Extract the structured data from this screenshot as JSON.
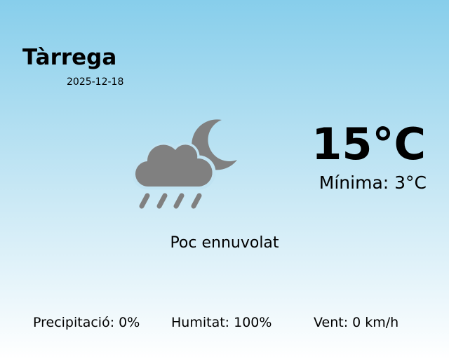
{
  "location": {
    "city": "Tàrrega",
    "date": "2025-12-18"
  },
  "current": {
    "temperature": "15°C",
    "min_temperature": "Mínima: 3°C",
    "condition": "Poc ennuvolat",
    "icon": "cloud-rain-moon-icon",
    "icon_color": "#808080"
  },
  "stats": {
    "precipitation": "Precipitació: 0%",
    "humidity": "Humitat: 100%",
    "wind": "Vent: 0 km/h"
  },
  "colors": {
    "background_top": "#87ceeb",
    "background_bottom": "#ffffff"
  }
}
